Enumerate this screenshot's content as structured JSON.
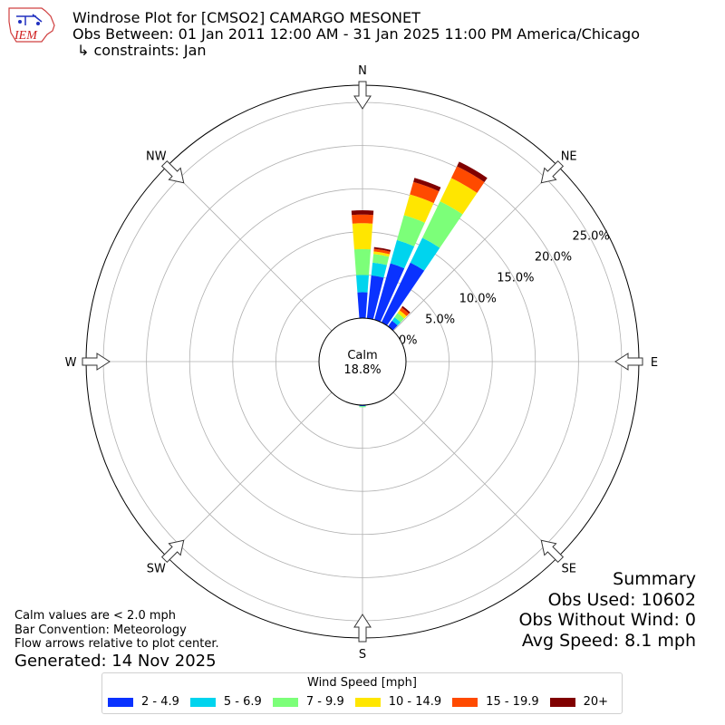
{
  "header": {
    "title": "Windrose Plot for [CMSO2] CAMARGO MESONET",
    "subtitle": "Obs Between: 01 Jan 2011 12:00 AM - 31 Jan 2025 11:00 PM America/Chicago",
    "constraints": "↳ constraints: Jan",
    "logo_text": "IEM"
  },
  "notes": {
    "calm_note": "Calm values are < 2.0 mph",
    "bar_convention": "Bar Convention: Meteorology",
    "flow_note": "Flow arrows relative to plot center.",
    "generated": "Generated: 14 Nov 2025"
  },
  "summary": {
    "heading": "Summary",
    "obs_used": "Obs Used: 10602",
    "obs_without_wind": "Obs Without Wind: 0",
    "avg_speed": "Avg Speed: 8.1 mph"
  },
  "legend": {
    "title": "Wind Speed [mph]",
    "items": [
      {
        "label": "2 - 4.9",
        "color": "#0a32ff"
      },
      {
        "label": "5 - 6.9",
        "color": "#00d4ee"
      },
      {
        "label": "7 - 9.9",
        "color": "#7cff79"
      },
      {
        "label": "10 - 14.9",
        "color": "#ffe600"
      },
      {
        "label": "15 - 19.9",
        "color": "#ff4a00"
      },
      {
        "label": "20+",
        "color": "#800000"
      }
    ]
  },
  "chart_data": {
    "type": "windrose",
    "calm_label": "Calm",
    "calm_value": "18.8%",
    "calm_percent": 18.8,
    "radial_ticks": [
      0,
      5,
      10,
      15,
      20,
      25
    ],
    "radial_tick_labels": [
      "0.0%",
      "5.0%",
      "10.0%",
      "15.0%",
      "20.0%",
      "25.0%"
    ],
    "rmax_percent": 27,
    "directions": [
      "N",
      "NE",
      "E",
      "SE",
      "S",
      "SW",
      "W",
      "NW"
    ],
    "bars": [
      {
        "direction_deg": 0,
        "segments": [
          3.0,
          2.0,
          3.0,
          3.0,
          1.0,
          0.5
        ]
      },
      {
        "direction_deg": 10,
        "segments": [
          5.0,
          1.5,
          1.0,
          0.3,
          0.3,
          0.2
        ]
      },
      {
        "direction_deg": 20,
        "segments": [
          6.8,
          2.8,
          3.0,
          2.5,
          1.5,
          0.5
        ]
      },
      {
        "direction_deg": 30,
        "segments": [
          7.7,
          3.2,
          4.7,
          3.0,
          1.5,
          0.6
        ]
      },
      {
        "direction_deg": 40,
        "segments": [
          0.8,
          0.5,
          0.6,
          0.4,
          0.4,
          0.2
        ]
      },
      {
        "direction_deg": 180,
        "segments": [
          0.1,
          0.05,
          0.1,
          0,
          0,
          0
        ]
      }
    ],
    "colors": [
      "#0a32ff",
      "#00d4ee",
      "#7cff79",
      "#ffe600",
      "#ff4a00",
      "#800000"
    ],
    "series_names": [
      "2 - 4.9",
      "5 - 6.9",
      "7 - 9.9",
      "10 - 14.9",
      "15 - 19.9",
      "20+"
    ]
  }
}
